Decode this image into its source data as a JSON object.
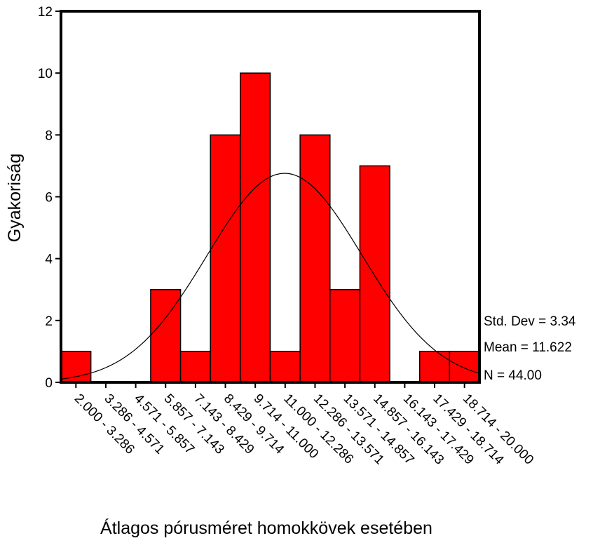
{
  "chart_data": {
    "type": "bar",
    "title": "",
    "xlabel": "Átlagos pórusméret homokkövek esetében",
    "ylabel": "Gyakoriság",
    "ylim": [
      0,
      12
    ],
    "yticks": [
      "0",
      "2",
      "4",
      "6",
      "8",
      "10",
      "12"
    ],
    "categories": [
      "2.000 - 3.286",
      "3.286 - 4.571",
      "4.571 - 5.857",
      "5.857 - 7.143",
      "7.143 - 8.429",
      "8.429 - 9.714",
      "9.714 - 11.000",
      "11.000 - 12.286",
      "12.286 - 13.571",
      "13.571 - 14.857",
      "14.857 - 16.143",
      "16.143 - 17.429",
      "17.429 - 18.714",
      "18.714 - 20.000"
    ],
    "bin_edges": [
      1.0,
      2.0,
      3.0,
      4.0,
      5.0,
      6.0,
      7.0,
      8.0,
      9.0,
      10.0,
      11.0,
      12.0,
      13.0,
      14.0,
      15.0
    ],
    "values": [
      1,
      0,
      0,
      3,
      1,
      8,
      10,
      1,
      8,
      3,
      7,
      0,
      1,
      1
    ],
    "bar_color": "#ff0000",
    "normal_curve": {
      "mean": 11.622,
      "std_dev": 3.34,
      "n": 44.0
    },
    "stats": {
      "std_dev": "Std. Dev = 3.34",
      "mean": "Mean = 11.622",
      "n": "N = 44.00"
    },
    "grid": false,
    "legend": "none"
  }
}
